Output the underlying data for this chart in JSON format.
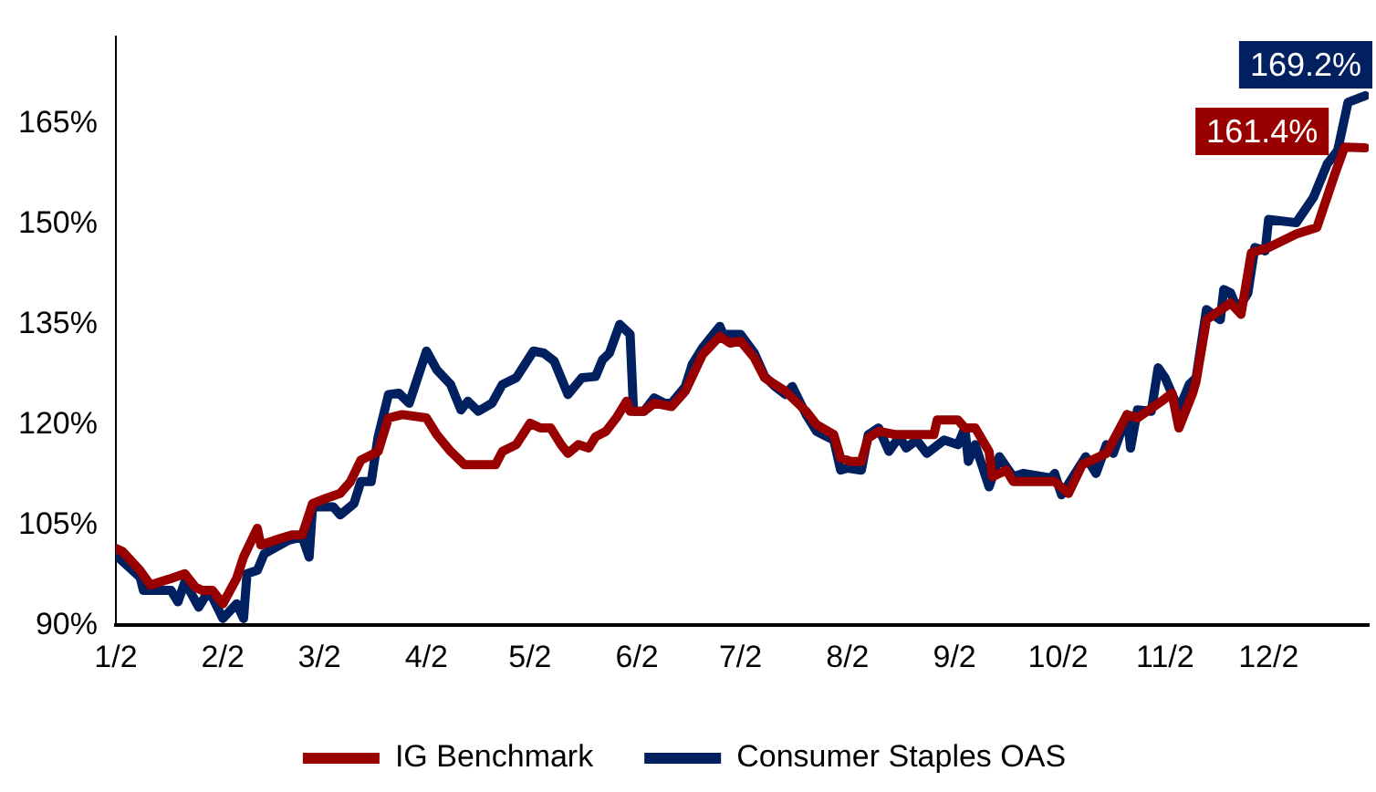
{
  "chart_data": {
    "type": "line",
    "xlim": [
      "--01-02",
      "--12-31"
    ],
    "xticks": [
      {
        "value": "--01-02",
        "label": "1/2"
      },
      {
        "value": "--02-02",
        "label": "2/2"
      },
      {
        "value": "--03-02",
        "label": "3/2"
      },
      {
        "value": "--04-02",
        "label": "4/2"
      },
      {
        "value": "--05-02",
        "label": "5/2"
      },
      {
        "value": "--06-02",
        "label": "6/2"
      },
      {
        "value": "--07-02",
        "label": "7/2"
      },
      {
        "value": "--08-02",
        "label": "8/2"
      },
      {
        "value": "--09-02",
        "label": "9/2"
      },
      {
        "value": "--10-02",
        "label": "10/2"
      },
      {
        "value": "--11-02",
        "label": "11/2"
      },
      {
        "value": "--12-02",
        "label": "12/2"
      }
    ],
    "ylim": [
      90,
      178
    ],
    "yticks": [
      {
        "value": 90,
        "label": "90%"
      },
      {
        "value": 105,
        "label": "105%"
      },
      {
        "value": 120,
        "label": "120%"
      },
      {
        "value": 135,
        "label": "135%"
      },
      {
        "value": 150,
        "label": "150%"
      },
      {
        "value": 165,
        "label": "165%"
      }
    ],
    "grid": false,
    "legend": "bottom",
    "marker": "none",
    "line_style": "solid",
    "series": [
      {
        "name": "IG Benchmark",
        "color": "#990000",
        "x": [
          "--01-02",
          "--01-04",
          "--01-09",
          "--01-12",
          "--01-15",
          "--01-18",
          "--01-22",
          "--01-25",
          "--01-27",
          "--01-30",
          "--02-02",
          "--02-06",
          "--02-08",
          "--02-12",
          "--02-13",
          "--02-17",
          "--02-22",
          "--02-25",
          "--02-28",
          "--03-04",
          "--03-08",
          "--03-11",
          "--03-14",
          "--03-16",
          "--03-19",
          "--03-22",
          "--03-26",
          "--04-02",
          "--04-05",
          "--04-09",
          "--04-13",
          "--04-22",
          "--04-24",
          "--04-28",
          "--05-02",
          "--05-05",
          "--05-08",
          "--05-11",
          "--05-13",
          "--05-16",
          "--05-19",
          "--05-21",
          "--05-24",
          "--05-27",
          "--05-30",
          "--05-31",
          "--06-04",
          "--06-07",
          "--06-12",
          "--06-16",
          "--06-21",
          "--06-26",
          "--06-29",
          "--07-02",
          "--07-06",
          "--07-09",
          "--07-15",
          "--07-21",
          "--07-24",
          "--07-29",
          "--07-31",
          "--08-03",
          "--08-06",
          "--08-08",
          "--08-11",
          "--08-16",
          "--08-27",
          "--08-28",
          "--09-03",
          "--09-05",
          "--09-08",
          "--09-12",
          "--09-13",
          "--09-17",
          "--09-19",
          "--10-01",
          "--10-05",
          "--10-09",
          "--10-16",
          "--10-22",
          "--10-25",
          "--11-01",
          "--11-04",
          "--11-06",
          "--11-10",
          "--11-11",
          "--11-14",
          "--11-21",
          "--11-24",
          "--11-27",
          "--12-02",
          "--12-10",
          "--12-16",
          "--12-21",
          "--12-24",
          "--12-30"
        ],
        "values": [
          101.5,
          101,
          98.2,
          96,
          96.5,
          97,
          97.7,
          95.7,
          95.2,
          95.2,
          93.2,
          97,
          100.2,
          104.5,
          102,
          102.7,
          103.5,
          103.5,
          108.2,
          109,
          109.7,
          111.5,
          114.7,
          115.2,
          116,
          121,
          121.5,
          121,
          118.5,
          116,
          114,
          114,
          116,
          117,
          120.2,
          119.5,
          119.5,
          117,
          115.7,
          117,
          116.5,
          118.2,
          119,
          121,
          123.5,
          122,
          122,
          123.2,
          122.7,
          125,
          130.5,
          133.2,
          132.2,
          132.5,
          130,
          127,
          125,
          122,
          120,
          118.5,
          115,
          114.5,
          114.5,
          118,
          119,
          118.5,
          118.5,
          120.7,
          120.7,
          119.5,
          119.5,
          116,
          112.2,
          113.2,
          111.5,
          111.5,
          109.7,
          114,
          115.7,
          121.5,
          121,
          123.5,
          124.7,
          119.5,
          124.7,
          126.5,
          135.7,
          138.2,
          136.5,
          145.7,
          146.5,
          148.5,
          149.5,
          157.2,
          161.5,
          161.4
        ],
        "value_labels": [
          null,
          null,
          null,
          null,
          null,
          null,
          null,
          null,
          null,
          null,
          null,
          null,
          null,
          null,
          null,
          null,
          null,
          null,
          null,
          null,
          null,
          null,
          null,
          null,
          null,
          null,
          null,
          null,
          null,
          null,
          null,
          null,
          null,
          null,
          null,
          null,
          null,
          null,
          null,
          null,
          null,
          null,
          null,
          null,
          null,
          null,
          null,
          null,
          null,
          null,
          null,
          null,
          null,
          null,
          null,
          null,
          null,
          null,
          null,
          null,
          null,
          null,
          null,
          null,
          null,
          null,
          null,
          null,
          null,
          null,
          null,
          null,
          null,
          null,
          null,
          null,
          null,
          null,
          null,
          null,
          null,
          null,
          null,
          null,
          null,
          null,
          null,
          null,
          null,
          null,
          null,
          null,
          null,
          null,
          null,
          "161.4%"
        ]
      },
      {
        "name": "Consumer Staples OAS",
        "color": "#002060",
        "x": [
          "--01-02",
          "--01-09",
          "--01-10",
          "--01-18",
          "--01-20",
          "--01-22",
          "--01-26",
          "--01-29",
          "--02-02",
          "--02-06",
          "--02-08",
          "--02-09",
          "--02-12",
          "--02-14",
          "--02-21",
          "--02-25",
          "--02-27",
          "--02-28",
          "--03-06",
          "--03-08",
          "--03-12",
          "--03-14",
          "--03-17",
          "--03-19",
          "--03-22",
          "--03-25",
          "--03-28",
          "--04-02",
          "--04-05",
          "--04-09",
          "--04-12",
          "--04-14",
          "--04-17",
          "--04-21",
          "--04-24",
          "--04-28",
          "--05-03",
          "--05-06",
          "--05-09",
          "--05-13",
          "--05-17",
          "--05-21",
          "--05-23",
          "--05-25",
          "--05-28",
          "--05-31",
          "--06-01",
          "--06-04",
          "--06-07",
          "--06-10",
          "--06-12",
          "--06-16",
          "--06-18",
          "--06-21",
          "--06-26",
          "--06-27",
          "--07-02",
          "--07-06",
          "--07-09",
          "--07-12",
          "--07-15",
          "--07-17",
          "--07-21",
          "--07-24",
          "--07-29",
          "--07-31",
          "--08-02",
          "--08-06",
          "--08-08",
          "--08-11",
          "--08-14",
          "--08-17",
          "--08-19",
          "--08-22",
          "--08-25",
          "--08-30",
          "--09-03",
          "--09-05",
          "--09-06",
          "--09-08",
          "--09-12",
          "--09-15",
          "--09-19",
          "--09-22",
          "--09-30",
          "--10-01",
          "--10-03",
          "--10-10",
          "--10-13",
          "--10-16",
          "--10-18",
          "--10-22",
          "--10-23",
          "--10-25",
          "--10-29",
          "--10-31",
          "--11-02",
          "--11-06",
          "--11-09",
          "--11-11",
          "--11-14",
          "--11-18",
          "--11-19",
          "--11-21",
          "--11-23",
          "--11-26",
          "--11-28",
          "--12-01",
          "--12-02",
          "--12-10",
          "--12-15",
          "--12-19",
          "--12-22",
          "--12-25",
          "--12-30"
        ],
        "values": [
          100.5,
          97.2,
          95.2,
          95.2,
          93.5,
          96.5,
          92.7,
          95.2,
          91,
          93.2,
          91,
          97.7,
          98.2,
          100.7,
          102.7,
          103.2,
          100.2,
          107.7,
          107.7,
          106.5,
          108.2,
          111.5,
          111.5,
          118.2,
          124.5,
          124.7,
          123.2,
          131,
          128.2,
          126,
          122.2,
          123.5,
          122,
          123.2,
          126,
          127,
          131,
          130.7,
          129.5,
          124.5,
          127,
          127.2,
          129.7,
          130.7,
          135,
          133.5,
          122,
          122,
          124,
          123.2,
          123.2,
          125.7,
          129,
          131.5,
          134.7,
          133.5,
          133.5,
          130.7,
          127.2,
          125.7,
          124.5,
          125.7,
          121.5,
          119,
          117.7,
          113.2,
          113.5,
          113.2,
          118.5,
          119.5,
          116,
          118.2,
          116.5,
          117.7,
          115.7,
          117.7,
          117,
          119.5,
          114.5,
          117,
          110.7,
          115.2,
          112.2,
          112.7,
          112,
          112.7,
          109.5,
          115.2,
          112.7,
          117,
          115.7,
          121.5,
          116.5,
          122.2,
          122,
          128.5,
          127,
          122.2,
          126,
          127,
          137.2,
          135.7,
          140.2,
          139.7,
          137.2,
          139.7,
          146.5,
          146,
          150.7,
          150.2,
          154,
          159,
          161,
          168.2,
          169.2
        ],
        "value_labels": [
          null,
          null,
          null,
          null,
          null,
          null,
          null,
          null,
          null,
          null,
          null,
          null,
          null,
          null,
          null,
          null,
          null,
          null,
          null,
          null,
          null,
          null,
          null,
          null,
          null,
          null,
          null,
          null,
          null,
          null,
          null,
          null,
          null,
          null,
          null,
          null,
          null,
          null,
          null,
          null,
          null,
          null,
          null,
          null,
          null,
          null,
          null,
          null,
          null,
          null,
          null,
          null,
          null,
          null,
          null,
          null,
          null,
          null,
          null,
          null,
          null,
          null,
          null,
          null,
          null,
          null,
          null,
          null,
          null,
          null,
          null,
          null,
          null,
          null,
          null,
          null,
          null,
          null,
          null,
          null,
          null,
          null,
          null,
          null,
          null,
          null,
          null,
          null,
          null,
          null,
          null,
          null,
          null,
          null,
          null,
          null,
          null,
          null,
          null,
          null,
          null,
          null,
          null,
          null,
          null,
          null,
          null,
          null,
          null,
          null,
          null,
          null,
          null,
          null,
          "169.2%"
        ]
      }
    ]
  }
}
